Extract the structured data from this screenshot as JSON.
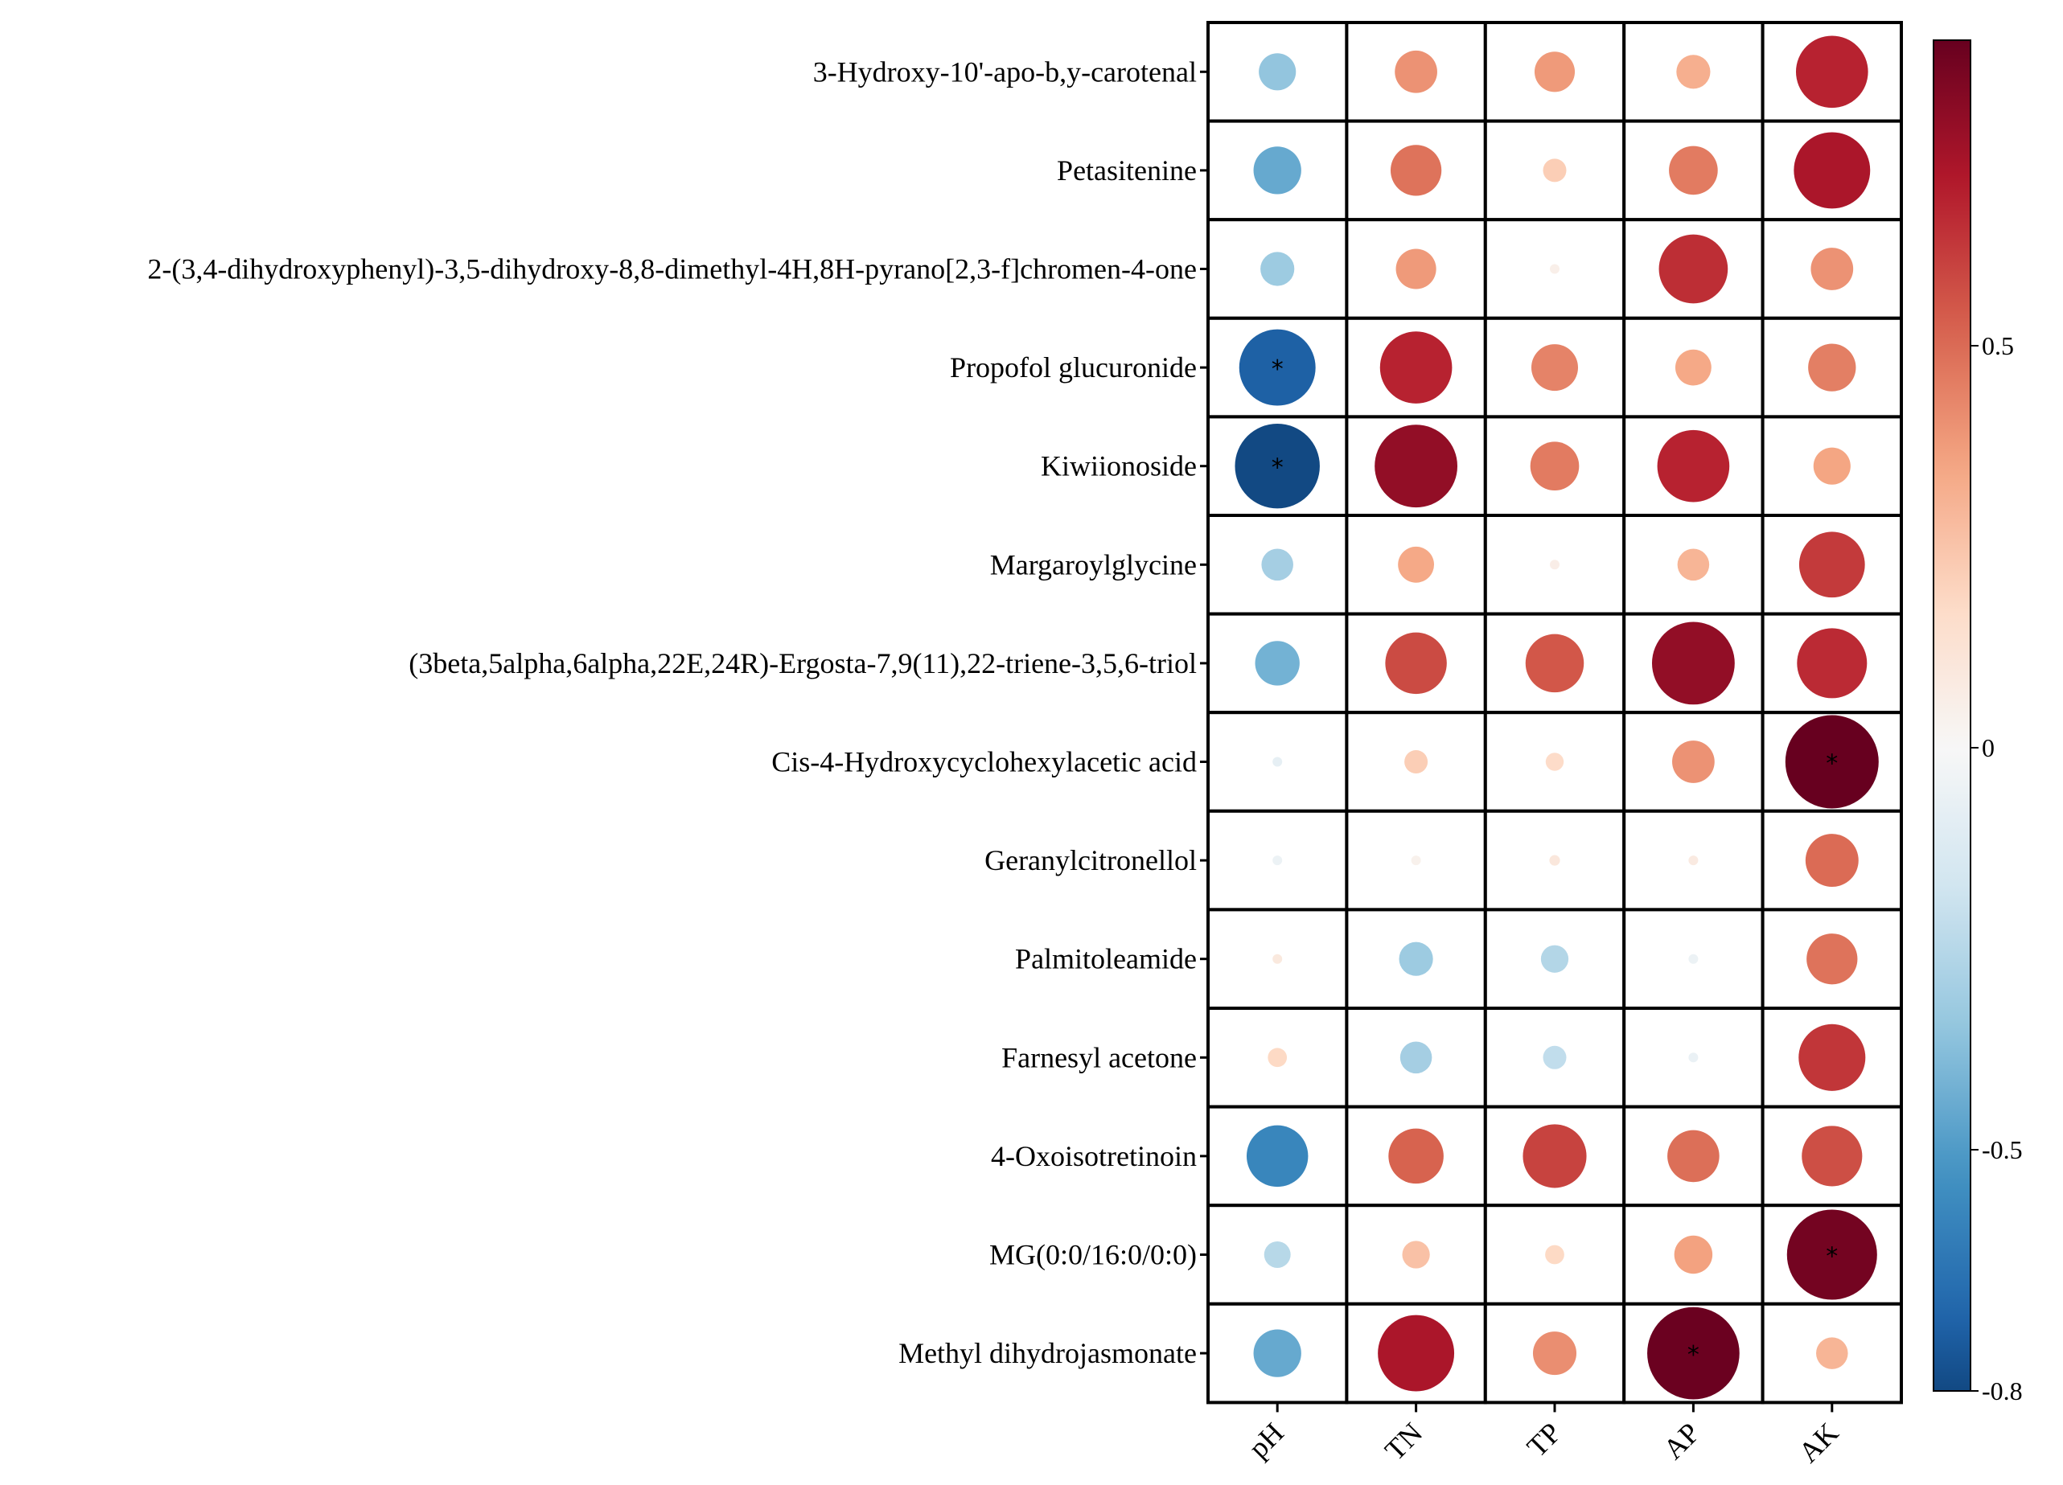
{
  "chart_data": {
    "type": "heatmap",
    "subtype": "correlation-bubble",
    "title": "",
    "columns": [
      "pH",
      "TN",
      "TP",
      "AP",
      "AK"
    ],
    "rows": [
      "3-Hydroxy-10'-apo-b,y-carotenal",
      "Petasitenine",
      "2-(3,4-dihydroxyphenyl)-3,5-dihydroxy-8,8-dimethyl-4H,8H-pyrano[2,3-f]chromen-4-one",
      "Propofol glucuronide",
      "Kiwiionoside",
      "Margaroylglycine",
      "(3beta,5alpha,6alpha,22E,24R)-Ergosta-7,9(11),22-triene-3,5,6-triol",
      "Cis-4-Hydroxycyclohexylacetic acid",
      "Geranylcitronellol",
      "Palmitoleamide",
      "Farnesyl acetone",
      "4-Oxoisotretinoin",
      "MG(0:0/16:0/0:0)",
      "Methyl dihydrojasmonate"
    ],
    "values": [
      [
        -0.35,
        0.4,
        0.38,
        0.32,
        0.68
      ],
      [
        -0.45,
        0.48,
        0.22,
        0.46,
        0.72
      ],
      [
        -0.32,
        0.38,
        0.05,
        0.65,
        0.4
      ],
      [
        -0.72,
        0.68,
        0.44,
        0.34,
        0.45
      ],
      [
        -0.8,
        0.78,
        0.46,
        0.68,
        0.35
      ],
      [
        -0.3,
        0.34,
        0.06,
        0.3,
        0.62
      ],
      [
        -0.42,
        0.58,
        0.55,
        0.78,
        0.66
      ],
      [
        -0.08,
        0.22,
        0.17,
        0.4,
        0.88
      ],
      [
        -0.05,
        0.04,
        0.1,
        0.08,
        0.5
      ],
      [
        0.09,
        -0.32,
        -0.26,
        -0.05,
        0.48
      ],
      [
        0.18,
        -0.3,
        -0.22,
        -0.06,
        0.63
      ],
      [
        -0.58,
        0.52,
        0.6,
        0.49,
        0.57
      ],
      [
        -0.25,
        0.26,
        0.18,
        0.36,
        0.85
      ],
      [
        -0.45,
        0.72,
        0.41,
        0.87,
        0.3
      ]
    ],
    "significance": [
      [
        "",
        "",
        "",
        "",
        ""
      ],
      [
        "",
        "",
        "",
        "",
        ""
      ],
      [
        "",
        "",
        "",
        "",
        ""
      ],
      [
        "*",
        "",
        "",
        "",
        ""
      ],
      [
        "*",
        "",
        "",
        "",
        ""
      ],
      [
        "",
        "",
        "",
        "",
        ""
      ],
      [
        "",
        "",
        "",
        "",
        ""
      ],
      [
        "",
        "",
        "",
        "",
        "*"
      ],
      [
        "",
        "",
        "",
        "",
        ""
      ],
      [
        "",
        "",
        "",
        "",
        ""
      ],
      [
        "",
        "",
        "",
        "",
        ""
      ],
      [
        "",
        "",
        "",
        "",
        ""
      ],
      [
        "",
        "",
        "",
        "",
        "*"
      ],
      [
        "",
        "",
        "",
        "*",
        ""
      ]
    ],
    "colorbar": {
      "min": -0.8,
      "max": 0.88,
      "ticks": [
        {
          "value": 0.5,
          "label": "0.5"
        },
        {
          "value": 0,
          "label": "0"
        },
        {
          "value": -0.5,
          "label": "-0.5"
        },
        {
          "value": -0.8,
          "label": "-0.8"
        }
      ],
      "colormap": [
        "#053061",
        "#2166ac",
        "#4393c3",
        "#92c5de",
        "#d1e5f0",
        "#f7f7f7",
        "#fddbc7",
        "#f4a582",
        "#d6604d",
        "#b2182b",
        "#67001f"
      ]
    }
  }
}
